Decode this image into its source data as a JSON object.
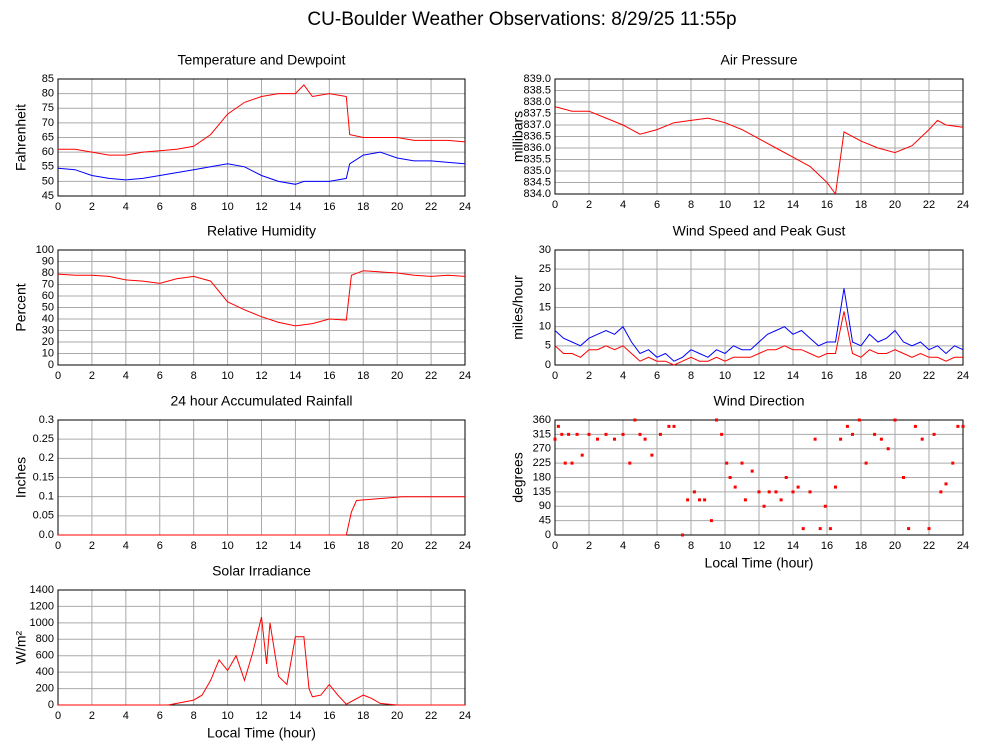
{
  "title": "CU-Boulder Weather Observations: 8/29/25 11:55p",
  "chart_data": [
    {
      "type": "line",
      "title": "Temperature and Dewpoint",
      "ylabel": "Fahrenheit",
      "x": [
        0,
        1,
        2,
        3,
        4,
        5,
        6,
        7,
        8,
        9,
        10,
        11,
        12,
        13,
        14,
        14.5,
        15,
        16,
        17,
        17.2,
        18,
        19,
        20,
        21,
        22,
        23,
        24
      ],
      "series": [
        {
          "color": "#ff0000",
          "values": [
            61,
            61,
            60,
            59,
            59,
            60,
            60.5,
            61,
            62,
            66,
            73,
            77,
            79,
            80,
            80,
            83,
            79,
            80,
            79,
            66,
            65,
            65,
            65,
            64,
            64,
            64,
            63.5
          ]
        },
        {
          "color": "#0000ff",
          "values": [
            54.5,
            54,
            52,
            51,
            50.5,
            51,
            52,
            53,
            54,
            55,
            56,
            55,
            52,
            50,
            49,
            50,
            50,
            50,
            51,
            56,
            59,
            60,
            58,
            57,
            57,
            56.5,
            56
          ]
        }
      ],
      "xlim": [
        0,
        24
      ],
      "ylim": [
        45,
        85
      ],
      "xticks": [
        0,
        2,
        4,
        6,
        8,
        10,
        12,
        14,
        16,
        18,
        20,
        22,
        24
      ],
      "yticks": [
        45,
        50,
        55,
        60,
        65,
        70,
        75,
        80,
        85
      ],
      "grid": true
    },
    {
      "type": "line",
      "title": "Air Pressure",
      "ylabel": "millibars",
      "x": [
        0,
        1,
        2,
        3,
        4,
        5,
        6,
        7,
        8,
        9,
        10,
        11,
        12,
        13,
        14,
        15,
        16,
        16.5,
        17,
        18,
        19,
        20,
        21,
        22,
        22.5,
        23,
        24
      ],
      "series": [
        {
          "color": "#ff0000",
          "values": [
            837.8,
            837.6,
            837.6,
            837.3,
            837.0,
            836.6,
            836.8,
            837.1,
            837.2,
            837.3,
            837.1,
            836.8,
            836.4,
            836.0,
            835.6,
            835.2,
            834.5,
            834.0,
            836.7,
            836.3,
            836.0,
            835.8,
            836.1,
            836.8,
            837.2,
            837.0,
            836.9
          ]
        }
      ],
      "xlim": [
        0,
        24
      ],
      "ylim": [
        834,
        839
      ],
      "xticks": [
        0,
        2,
        4,
        6,
        8,
        10,
        12,
        14,
        16,
        18,
        20,
        22,
        24
      ],
      "yticks": [
        {
          "value": 834,
          "label": "834.0"
        },
        {
          "value": 834.5,
          "label": "834.5"
        },
        {
          "value": 835,
          "label": "835.0"
        },
        {
          "value": 835.5,
          "label": "835.5"
        },
        {
          "value": 836,
          "label": "836.0"
        },
        {
          "value": 836.5,
          "label": "836.5"
        },
        {
          "value": 837,
          "label": "837.0"
        },
        {
          "value": 837.5,
          "label": "837.5"
        },
        {
          "value": 838,
          "label": "838.0"
        },
        {
          "value": 838.5,
          "label": "838.5"
        },
        {
          "value": 839,
          "label": "839.0"
        }
      ],
      "grid": true
    },
    {
      "type": "line",
      "title": "Relative Humidity",
      "ylabel": "Percent",
      "x": [
        0,
        1,
        2,
        3,
        4,
        5,
        6,
        7,
        8,
        9,
        10,
        11,
        12,
        13,
        14,
        15,
        16,
        17,
        17.3,
        18,
        19,
        20,
        21,
        22,
        23,
        24
      ],
      "series": [
        {
          "color": "#ff0000",
          "values": [
            79,
            78,
            78,
            77,
            74,
            73,
            71,
            75,
            77,
            73,
            55,
            48,
            42,
            37,
            34,
            36,
            40,
            39,
            78,
            82,
            81,
            80,
            78,
            77,
            78,
            77
          ]
        }
      ],
      "xlim": [
        0,
        24
      ],
      "ylim": [
        0,
        100
      ],
      "xticks": [
        0,
        2,
        4,
        6,
        8,
        10,
        12,
        14,
        16,
        18,
        20,
        22,
        24
      ],
      "yticks": [
        0,
        10,
        20,
        30,
        40,
        50,
        60,
        70,
        80,
        90,
        100
      ],
      "grid": true
    },
    {
      "type": "line",
      "title": "Wind Speed and Peak Gust",
      "ylabel": "miles/hour",
      "x": [
        0,
        0.5,
        1,
        1.5,
        2,
        2.5,
        3,
        3.5,
        4,
        4.5,
        5,
        5.5,
        6,
        6.5,
        7,
        7.5,
        8,
        8.5,
        9,
        9.5,
        10,
        10.5,
        11,
        11.5,
        12,
        12.5,
        13,
        13.5,
        14,
        14.5,
        15,
        15.5,
        16,
        16.5,
        17,
        17.5,
        18,
        18.5,
        19,
        19.5,
        20,
        20.5,
        21,
        21.5,
        22,
        22.5,
        23,
        23.5,
        24
      ],
      "series": [
        {
          "color": "#0000ff",
          "values": [
            9,
            7,
            6,
            5,
            7,
            8,
            9,
            8,
            10,
            6,
            3,
            4,
            2,
            3,
            1,
            2,
            4,
            3,
            2,
            4,
            3,
            5,
            4,
            4,
            6,
            8,
            9,
            10,
            8,
            9,
            7,
            5,
            6,
            6,
            20,
            6,
            5,
            8,
            6,
            7,
            9,
            6,
            5,
            6,
            4,
            5,
            3,
            5,
            4
          ]
        },
        {
          "color": "#ff0000",
          "values": [
            5,
            3,
            3,
            2,
            4,
            4,
            5,
            4,
            5,
            3,
            1,
            2,
            1,
            1,
            0,
            1,
            2,
            1,
            1,
            2,
            1,
            2,
            2,
            2,
            3,
            4,
            4,
            5,
            4,
            4,
            3,
            2,
            3,
            3,
            14,
            3,
            2,
            4,
            3,
            3,
            4,
            3,
            2,
            3,
            2,
            2,
            1,
            2,
            2
          ]
        }
      ],
      "xlim": [
        0,
        24
      ],
      "ylim": [
        0,
        30
      ],
      "xticks": [
        0,
        2,
        4,
        6,
        8,
        10,
        12,
        14,
        16,
        18,
        20,
        22,
        24
      ],
      "yticks": [
        0,
        5,
        10,
        15,
        20,
        25,
        30
      ],
      "grid": true
    },
    {
      "type": "line",
      "title": "24 hour Accumulated Rainfall",
      "ylabel": "Inches",
      "x": [
        0,
        17,
        17.3,
        17.6,
        20.3,
        24
      ],
      "series": [
        {
          "color": "#ff0000",
          "values": [
            0,
            0,
            0.06,
            0.09,
            0.1,
            0.1
          ]
        }
      ],
      "xlim": [
        0,
        24
      ],
      "ylim": [
        0,
        0.3
      ],
      "xticks": [
        0,
        2,
        4,
        6,
        8,
        10,
        12,
        14,
        16,
        18,
        20,
        22,
        24
      ],
      "yticks": [
        {
          "value": 0,
          "label": "0.0"
        },
        0.05,
        0.1,
        0.15,
        0.2,
        0.25,
        0.3
      ],
      "grid": true
    },
    {
      "type": "scatter",
      "title": "Wind Direction",
      "ylabel": "degrees",
      "xlabel": "Local Time (hour)",
      "x": [
        0,
        0.2,
        0.4,
        0.6,
        0.8,
        1,
        1.3,
        1.6,
        2,
        2.5,
        3,
        3.5,
        4,
        4.4,
        4.7,
        5,
        5.3,
        5.7,
        6.2,
        6.7,
        7,
        7.5,
        7.8,
        8.2,
        8.5,
        8.8,
        9.2,
        9.5,
        9.8,
        10.1,
        10.3,
        10.6,
        11,
        11.2,
        11.6,
        12,
        12.3,
        12.6,
        13,
        13.3,
        13.6,
        14,
        14.3,
        14.6,
        15,
        15.3,
        15.6,
        15.9,
        16.2,
        16.5,
        16.8,
        17.2,
        17.5,
        17.9,
        18.3,
        18.8,
        19.2,
        19.6,
        20,
        20.5,
        20.8,
        21.2,
        21.6,
        22,
        22.3,
        22.7,
        23,
        23.4,
        23.7,
        24
      ],
      "series": [
        {
          "color": "#ff0000",
          "values": [
            300,
            340,
            315,
            225,
            315,
            225,
            315,
            250,
            315,
            300,
            315,
            300,
            315,
            225,
            360,
            315,
            300,
            250,
            315,
            340,
            340,
            0,
            110,
            135,
            110,
            110,
            45,
            360,
            315,
            225,
            180,
            150,
            225,
            110,
            200,
            135,
            90,
            135,
            135,
            110,
            180,
            135,
            150,
            20,
            135,
            300,
            20,
            90,
            20,
            150,
            300,
            340,
            315,
            360,
            225,
            315,
            300,
            270,
            360,
            180,
            20,
            340,
            300,
            20,
            315,
            135,
            160,
            225,
            340,
            340
          ]
        }
      ],
      "xlim": [
        0,
        24
      ],
      "ylim": [
        0,
        360
      ],
      "xticks": [
        0,
        2,
        4,
        6,
        8,
        10,
        12,
        14,
        16,
        18,
        20,
        22,
        24
      ],
      "yticks": [
        0,
        45,
        90,
        135,
        180,
        225,
        270,
        315,
        360
      ],
      "grid": true
    },
    {
      "type": "line",
      "title": "Solar Irradiance",
      "ylabel": "W/m²",
      "xlabel": "Local Time (hour)",
      "x": [
        0,
        6.5,
        7,
        8,
        8.5,
        9,
        9.5,
        10,
        10.5,
        11,
        11.5,
        12,
        12.3,
        12.5,
        13,
        13.5,
        14,
        14.5,
        14.8,
        15,
        15.5,
        16,
        16.5,
        17,
        18,
        18.5,
        19,
        20,
        24
      ],
      "series": [
        {
          "color": "#ff0000",
          "values": [
            0,
            0,
            20,
            60,
            120,
            300,
            550,
            420,
            600,
            300,
            650,
            1070,
            500,
            1000,
            350,
            250,
            830,
            830,
            200,
            100,
            120,
            250,
            120,
            10,
            120,
            80,
            20,
            0,
            0
          ]
        }
      ],
      "xlim": [
        0,
        24
      ],
      "ylim": [
        0,
        1400
      ],
      "xticks": [
        0,
        2,
        4,
        6,
        8,
        10,
        12,
        14,
        16,
        18,
        20,
        22,
        24
      ],
      "yticks": [
        0,
        200,
        400,
        600,
        800,
        1000,
        1200,
        1400
      ],
      "grid": true
    }
  ]
}
